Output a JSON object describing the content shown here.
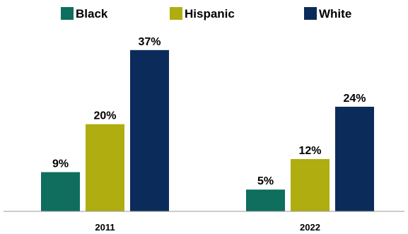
{
  "chart_data": {
    "type": "bar",
    "categories": [
      "2011",
      "2022"
    ],
    "series": [
      {
        "name": "Black",
        "values": [
          9,
          5
        ],
        "labels": [
          "9%",
          "5%"
        ],
        "color": "#0F6E5E"
      },
      {
        "name": "Hispanic",
        "values": [
          20,
          12
        ],
        "labels": [
          "20%",
          "12%"
        ],
        "color": "#AFAD10"
      },
      {
        "name": "White",
        "values": [
          37,
          24
        ],
        "labels": [
          "37%",
          "24%"
        ],
        "color": "#0B2C5A"
      }
    ],
    "ylim": [
      0,
      42
    ],
    "value_unit": "%",
    "legend_position": "top",
    "grid": false
  }
}
